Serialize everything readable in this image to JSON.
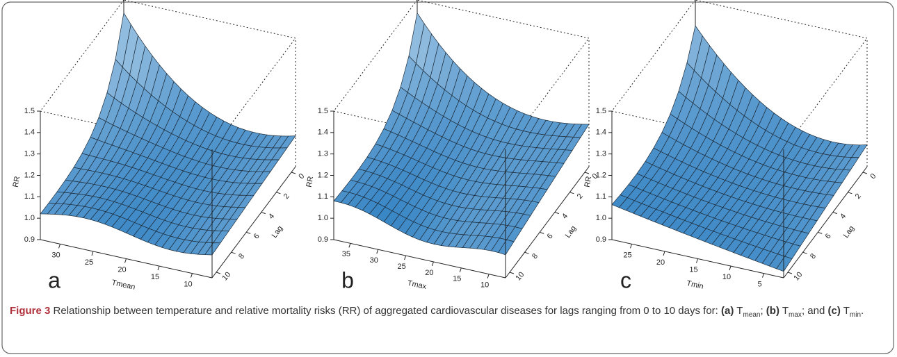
{
  "panels": [
    {
      "letter": "a",
      "z_label": "RR",
      "z_ticks": [
        "0.9",
        "1.0",
        "1.1",
        "1.2",
        "1.3",
        "1.4",
        "1.5"
      ],
      "x_label": "Tmean",
      "x_ticks": [
        "30",
        "25",
        "20",
        "15",
        "10"
      ],
      "lag_label": "Lag",
      "lag_ticks": [
        "0",
        "2",
        "4",
        "6",
        "8",
        "10"
      ]
    },
    {
      "letter": "b",
      "z_label": "RR",
      "z_ticks": [
        "0.9",
        "1.0",
        "1.1",
        "1.2",
        "1.3",
        "1.4",
        "1.5"
      ],
      "x_label": "Tmax",
      "x_ticks": [
        "35",
        "30",
        "25",
        "20",
        "15",
        "10"
      ],
      "lag_label": "Lag",
      "lag_ticks": [
        "0",
        "2",
        "4",
        "6",
        "8",
        "10"
      ]
    },
    {
      "letter": "c",
      "z_label": "RR",
      "z_ticks": [
        "0.9",
        "1.0",
        "1.1",
        "1.2",
        "1.3",
        "1.4",
        "1.5"
      ],
      "x_label": "Tmin",
      "x_ticks": [
        "25",
        "20",
        "15",
        "10",
        "5"
      ],
      "lag_label": "Lag",
      "lag_ticks": [
        "0",
        "2",
        "4",
        "6",
        "8",
        "10"
      ]
    }
  ],
  "caption": {
    "label": "Figure 3",
    "text": "Relationship between temperature and relative mortality risks (RR) of aggregated cardiovascular diseases for lags ranging from 0 to 10 days for:",
    "parts": [
      {
        "letter": "(a)",
        "symbol": "T",
        "sub": "mean",
        "after": ";"
      },
      {
        "letter": "(b)",
        "symbol": "T",
        "sub": "max",
        "after": "; and"
      },
      {
        "letter": "(c)",
        "symbol": "T",
        "sub": "min",
        "after": "."
      }
    ]
  }
}
